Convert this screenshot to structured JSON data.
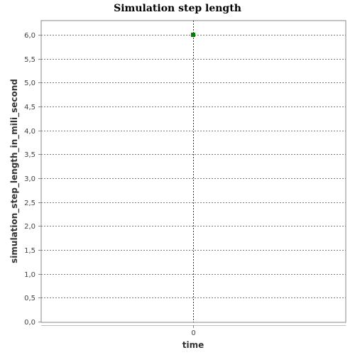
{
  "chart_data": {
    "type": "scatter",
    "title": "Simulation step length",
    "xlabel": "time",
    "ylabel": "simulation_step_length_in_mili_second",
    "x_ticks": [
      "0"
    ],
    "y_ticks": [
      "0,0",
      "0,5",
      "1,0",
      "1,5",
      "2,0",
      "2,5",
      "3,0",
      "3,5",
      "4,0",
      "4,5",
      "5,0",
      "5,5",
      "6,0"
    ],
    "ylim": [
      0,
      6.0
    ],
    "grid": true,
    "series": [
      {
        "x": [
          0
        ],
        "y": [
          6.0
        ],
        "color": "#008000",
        "marker": "square"
      }
    ]
  }
}
